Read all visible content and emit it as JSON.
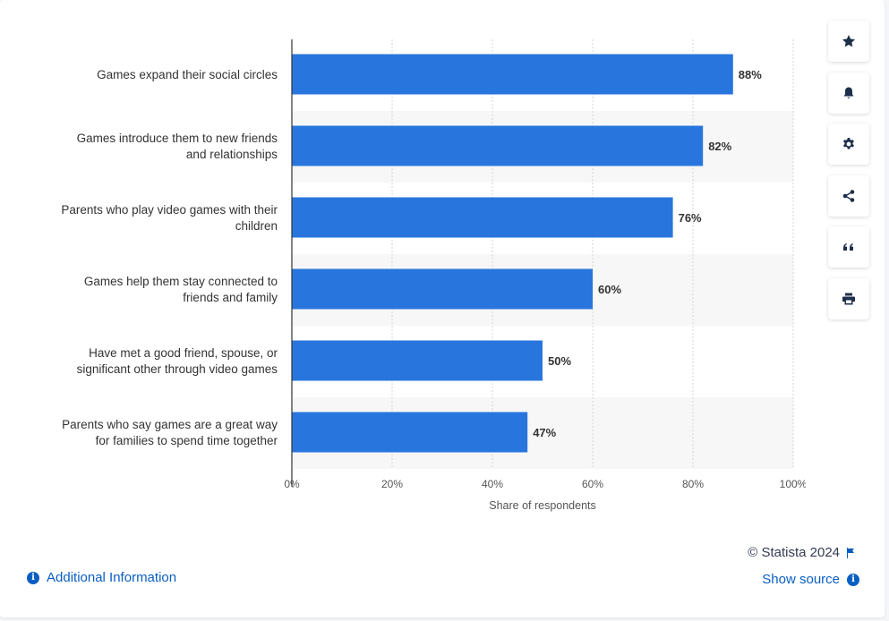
{
  "chart_data": {
    "type": "bar",
    "orientation": "horizontal",
    "categories": [
      [
        "Games expand their social circles"
      ],
      [
        "Games introduce them to new friends",
        "and relationships"
      ],
      [
        "Parents who play video games with their",
        "children"
      ],
      [
        "Games help them stay connected to",
        "friends and family"
      ],
      [
        "Have met a good friend, spouse, or",
        "significant other through video games"
      ],
      [
        "Parents who say games are a great way",
        "for families to spend time together"
      ]
    ],
    "values": [
      88,
      82,
      76,
      60,
      50,
      47
    ],
    "value_labels": [
      "88%",
      "82%",
      "76%",
      "60%",
      "50%",
      "47%"
    ],
    "xlim": [
      0,
      100
    ],
    "ticks": [
      0,
      20,
      40,
      60,
      80,
      100
    ],
    "tick_labels": [
      "0%",
      "20%",
      "40%",
      "60%",
      "80%",
      "100%"
    ],
    "xlabel": "Share of respondents",
    "ylabel": "",
    "grid": true,
    "bar_color": "#2876dd"
  },
  "toolbar": [
    {
      "icon": "star-icon",
      "name": "favorite-button"
    },
    {
      "icon": "bell-icon",
      "name": "notification-button"
    },
    {
      "icon": "gear-icon",
      "name": "settings-button"
    },
    {
      "icon": "share-icon",
      "name": "share-button"
    },
    {
      "icon": "quote-icon",
      "name": "cite-button"
    },
    {
      "icon": "print-icon",
      "name": "print-button"
    }
  ],
  "footer": {
    "copyright": "© Statista 2024",
    "show_source": "Show source",
    "additional_info": "Additional Information"
  }
}
